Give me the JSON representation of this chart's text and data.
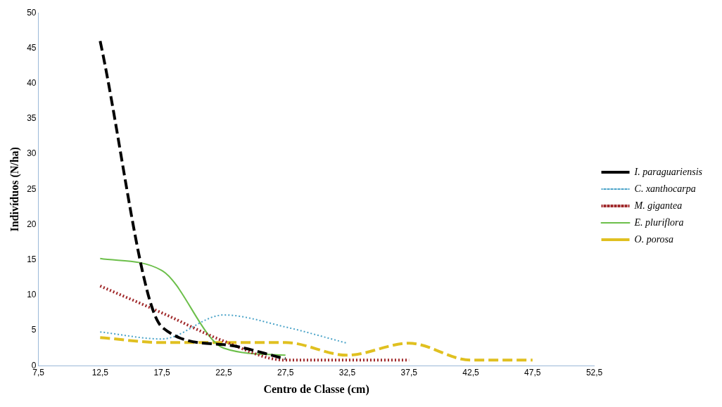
{
  "chart_data": {
    "type": "line",
    "xlabel": "Centro de Classe (cm)",
    "ylabel": "Indivíduos (N/ha)",
    "x": [
      12.5,
      17.5,
      22.5,
      27.5,
      32.5,
      37.5,
      42.5,
      47.5
    ],
    "xlim": [
      7.5,
      52.5
    ],
    "xticks": [
      {
        "value": 7.5,
        "label": "7,5"
      },
      {
        "value": 12.5,
        "label": "12,5"
      },
      {
        "value": 17.5,
        "label": "17,5"
      },
      {
        "value": 22.5,
        "label": "22,5"
      },
      {
        "value": 27.5,
        "label": "27,5"
      },
      {
        "value": 32.5,
        "label": "32,5"
      },
      {
        "value": 37.5,
        "label": "37,5"
      },
      {
        "value": 42.5,
        "label": "42,5"
      },
      {
        "value": 47.5,
        "label": "47,5"
      },
      {
        "value": 52.5,
        "label": "52,5"
      }
    ],
    "ylim": [
      0,
      50
    ],
    "yticks": [
      0,
      5,
      10,
      15,
      20,
      25,
      30,
      35,
      40,
      45,
      50
    ],
    "grid": false,
    "legend": "right",
    "marker": "none",
    "series": [
      {
        "name": "I. paraguariensis",
        "color": "#000000",
        "line_style": "dashed",
        "values": [
          46,
          5.5,
          3,
          1,
          null,
          null,
          null,
          null
        ]
      },
      {
        "name": "C. xanthocarpa",
        "color": "#4aa3c8",
        "line_style": "dotted",
        "values": [
          4.8,
          3.8,
          7.2,
          5.5,
          3.2,
          null,
          null,
          null
        ]
      },
      {
        "name": "M. gigantea",
        "color": "#a0282a",
        "line_style": "dotted",
        "values": [
          11.3,
          7.5,
          3.5,
          0.8,
          0.8,
          0.8,
          null,
          null
        ]
      },
      {
        "name": "E. pluriflora",
        "color": "#6cbf4a",
        "line_style": "solid",
        "values": [
          15.2,
          13.5,
          2.5,
          1.5,
          null,
          null,
          null,
          null
        ]
      },
      {
        "name": "O. porosa",
        "color": "#e0c020",
        "line_style": "dashed",
        "values": [
          4,
          3.3,
          3.3,
          3.3,
          1.5,
          3.2,
          0.8,
          0.8
        ]
      }
    ]
  }
}
